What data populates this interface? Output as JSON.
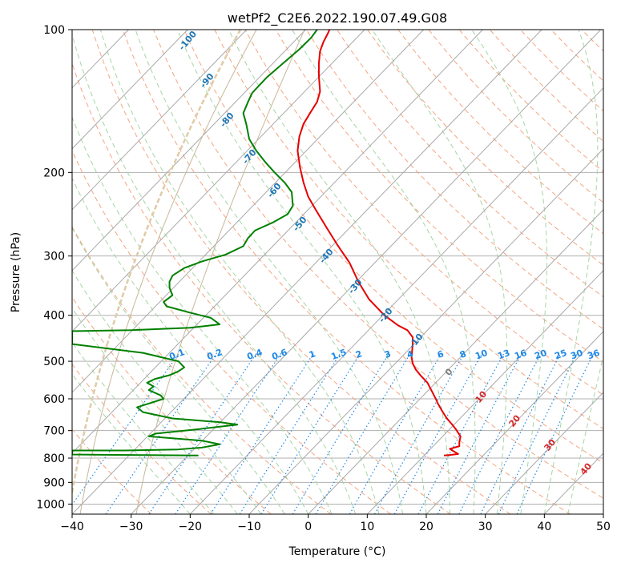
{
  "chart_data": {
    "type": "line",
    "subtype": "skew-T log-P diagram",
    "title": "wetPf2_C2E6.2022.190.07.49.G08",
    "xlabel": "Temperature (°C)",
    "ylabel": "Pressure (hPa)",
    "xlim": [
      -40,
      50
    ],
    "ylim": [
      1050,
      100
    ],
    "y_scale": "log",
    "grid": true,
    "x_ticks": [
      -40,
      -30,
      -20,
      -10,
      0,
      10,
      20,
      30,
      40,
      50
    ],
    "y_ticks": [
      100,
      200,
      300,
      400,
      500,
      600,
      700,
      800,
      900,
      1000
    ],
    "colors": {
      "temperature": "#e60000",
      "dewpoint": "#008000",
      "grid": "#b0b0b0",
      "isotherm": "#a9a9a9",
      "dry_adiabat": "#f4a582",
      "moist_adiabat": "#a6d5a6",
      "mixing_ratio": "#1e88e5",
      "isotherm_label": "#1f77b4",
      "hot_label": "#d62728",
      "zero_label": "#7f7f7f",
      "ice_curve": "#e0cba8",
      "brown_curve": "#c8b89a"
    },
    "series": [
      {
        "key": "temperature",
        "points": [
          [
            23.0,
            790
          ],
          [
            24.0,
            788
          ],
          [
            25.4,
            784
          ],
          [
            24.5,
            772
          ],
          [
            24.0,
            765
          ],
          [
            25.6,
            755
          ],
          [
            25.6,
            740
          ],
          [
            25.8,
            720
          ],
          [
            25.0,
            695
          ],
          [
            24.4,
            680
          ],
          [
            23.5,
            660
          ],
          [
            22.8,
            640
          ],
          [
            22.0,
            615
          ],
          [
            21.6,
            600
          ],
          [
            21.0,
            580
          ],
          [
            20.2,
            555
          ],
          [
            19.0,
            535
          ],
          [
            18.2,
            520
          ],
          [
            17.7,
            505
          ],
          [
            17.5,
            490
          ],
          [
            17.6,
            475
          ],
          [
            17.7,
            460
          ],
          [
            17.7,
            445
          ],
          [
            16.8,
            430
          ],
          [
            15.2,
            420
          ],
          [
            12.9,
            400
          ],
          [
            10.3,
            370
          ],
          [
            8.5,
            340
          ],
          [
            7.0,
            310
          ],
          [
            5.0,
            285
          ],
          [
            3.0,
            260
          ],
          [
            1.3,
            240
          ],
          [
            0.0,
            225
          ],
          [
            -0.8,
            210
          ],
          [
            -1.4,
            195
          ],
          [
            -1.8,
            180
          ],
          [
            -1.5,
            168
          ],
          [
            -0.8,
            158
          ],
          [
            0.3,
            150
          ],
          [
            1.5,
            142
          ],
          [
            2.0,
            135
          ],
          [
            1.8,
            125
          ],
          [
            1.8,
            118
          ],
          [
            2.0,
            111
          ],
          [
            2.6,
            106
          ],
          [
            3.3,
            102
          ],
          [
            3.6,
            100
          ]
        ]
      },
      {
        "key": "dewpoint",
        "points": [
          [
            -18.6,
            790
          ],
          [
            -30,
            788
          ],
          [
            -40,
            786
          ],
          [
            -40,
            771
          ],
          [
            -31,
            771
          ],
          [
            -22,
            767
          ],
          [
            -18.0,
            760
          ],
          [
            -15,
            748
          ],
          [
            -18.0,
            735
          ],
          [
            -27,
            720
          ],
          [
            -25.8,
            710
          ],
          [
            -18.5,
            695
          ],
          [
            -12,
            680
          ],
          [
            -15,
            672
          ],
          [
            -23,
            660
          ],
          [
            -28,
            640
          ],
          [
            -29,
            625
          ],
          [
            -24.5,
            600
          ],
          [
            -25,
            590
          ],
          [
            -27,
            575
          ],
          [
            -26.2,
            565
          ],
          [
            -27.3,
            555
          ],
          [
            -26.0,
            545
          ],
          [
            -23.5,
            535
          ],
          [
            -22.0,
            525
          ],
          [
            -21.0,
            515
          ],
          [
            -22,
            500
          ],
          [
            -28,
            480
          ],
          [
            -40,
            460
          ],
          [
            -40,
            432
          ],
          [
            -30,
            430
          ],
          [
            -20,
            425
          ],
          [
            -15,
            418
          ],
          [
            -16.5,
            405
          ],
          [
            -20,
            395
          ],
          [
            -24,
            383
          ],
          [
            -24.5,
            375
          ],
          [
            -23,
            363
          ],
          [
            -23.5,
            350
          ],
          [
            -23.5,
            340
          ],
          [
            -23,
            330
          ],
          [
            -21,
            318
          ],
          [
            -18,
            308
          ],
          [
            -14,
            298
          ],
          [
            -11,
            286
          ],
          [
            -10.2,
            275
          ],
          [
            -9,
            265
          ],
          [
            -6,
            255
          ],
          [
            -3.5,
            245
          ],
          [
            -2.6,
            235
          ],
          [
            -2.8,
            220
          ],
          [
            -4.0,
            210
          ],
          [
            -5.7,
            200
          ],
          [
            -7.3,
            190
          ],
          [
            -8.8,
            180
          ],
          [
            -10.0,
            170
          ],
          [
            -10.5,
            158
          ],
          [
            -11.0,
            150
          ],
          [
            -10.2,
            142
          ],
          [
            -9.5,
            136
          ],
          [
            -7.0,
            126
          ],
          [
            -4.0,
            117
          ],
          [
            -1.5,
            110
          ],
          [
            0.5,
            104
          ],
          [
            1.5,
            100
          ]
        ]
      }
    ],
    "isotherm_labels": [
      -100,
      -90,
      -80,
      -70,
      -60,
      -50,
      -40,
      -30,
      -20,
      -10
    ],
    "zero_label": "0",
    "hot_isotherm_labels": [
      10,
      20,
      30,
      40
    ],
    "mixing_ratio_labels": [
      "0.1",
      "0.2",
      "0.4",
      "0.6",
      "1",
      "1.5",
      "2",
      "3",
      "4",
      "6",
      "8",
      "10",
      "13",
      "16",
      "20",
      "25",
      "30",
      "36"
    ]
  }
}
